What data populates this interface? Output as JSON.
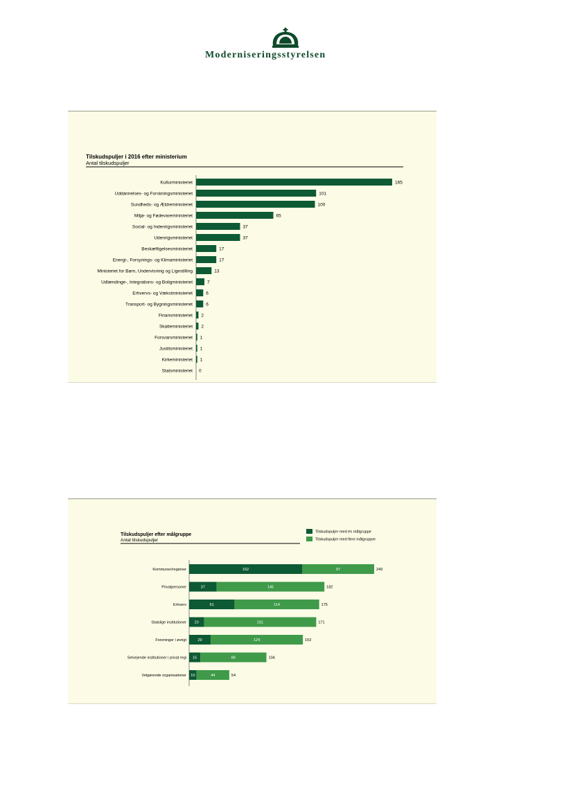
{
  "header": {
    "logo_text": "Moderniseringsstyrelsen"
  },
  "colors": {
    "dark_green": "#0d5a34",
    "light_green": "#3f9a4a",
    "logo_green": "#0f4a2b",
    "chart_bg": "#fbfbe6"
  },
  "chart_data": [
    {
      "type": "bar",
      "orientation": "horizontal",
      "title": "Tilskudspuljer i 2016 efter ministerium",
      "subtitle": "Antal tilskudspuljer",
      "categories": [
        "Kulturministeriet",
        "Uddannelses- og Forskningsministeriet",
        "Sundheds- og Ældreministeriet",
        "Miljø- og Fødevareministeriet",
        "Social- og Indenrigsministeriet",
        "Udenrigsministeriet",
        "Beskæftigelsesministeriet",
        "Energi-, Forsynings- og Klimaministeriet",
        "Ministeriet for Børn, Undervisning og Ligestilling",
        "Udlændinge-, Integrations- og Boligministeriet",
        "Erhvervs- og Vækstministeriet",
        "Transport- og Bygningsministeriet",
        "Finansministeriet",
        "Skatteministeriet",
        "Forsvarsministeriet",
        "Justitsministeriet",
        "Kirkeministeriet",
        "Statsministeriet"
      ],
      "values": [
        165,
        101,
        100,
        65,
        37,
        37,
        17,
        17,
        13,
        7,
        6,
        6,
        2,
        2,
        1,
        1,
        1,
        0
      ],
      "xlim": [
        0,
        165
      ],
      "grid": false
    },
    {
      "type": "bar",
      "orientation": "horizontal",
      "stacked": true,
      "title": "Tilskudspuljer efter målgruppe",
      "subtitle": "Antal tilskudspuljer",
      "legend_position": "top-right",
      "categories": [
        "Kommuner/regioner",
        "Privatpersoner",
        "Erhverv",
        "Statslige institutioner",
        "Foreninger i øvrigt",
        "Selvejende institutioner i privat regi",
        "Velgørende organisationer"
      ],
      "series": [
        {
          "name": "Tilskudspuljer med én målgruppe",
          "values": [
            152,
            37,
            61,
            20,
            29,
            15,
            10
          ]
        },
        {
          "name": "Tilskudspuljer med flere målgrupper",
          "values": [
            97,
            145,
            114,
            151,
            124,
            89,
            44
          ]
        }
      ],
      "totals": [
        249,
        182,
        175,
        171,
        153,
        104,
        54
      ],
      "grid": false
    }
  ]
}
